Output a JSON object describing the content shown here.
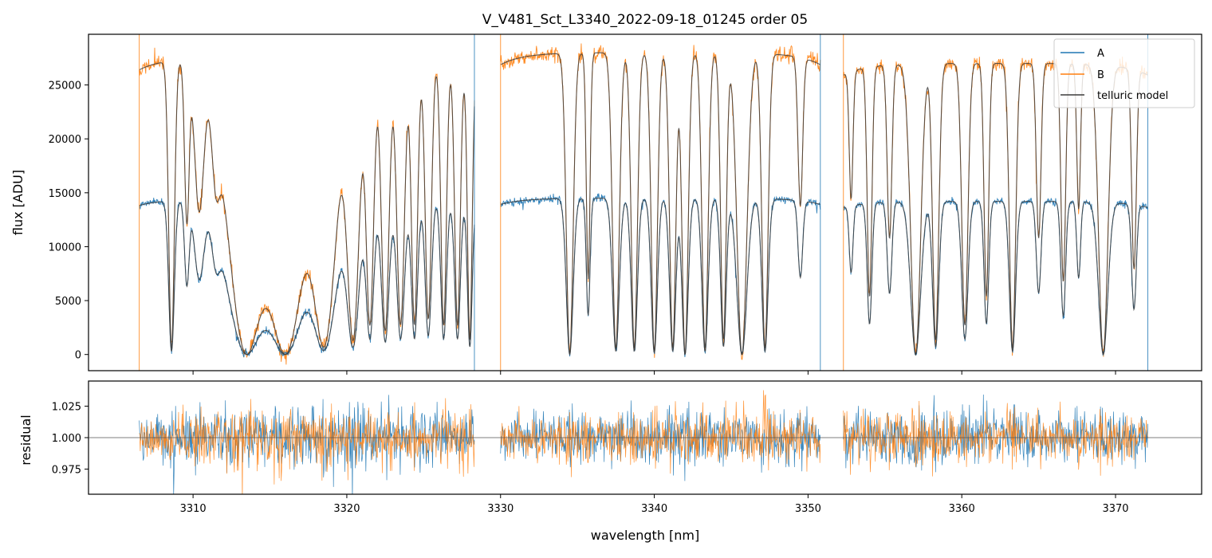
{
  "chart_data": {
    "type": "line",
    "title": "V_V481_Sct_L3340_2022-09-18_01245  order 05",
    "xlabel": "wavelength [nm]",
    "xlim": [
      3303.2,
      3375.6
    ],
    "x_ticks": [
      3310,
      3320,
      3330,
      3340,
      3350,
      3360,
      3370
    ],
    "x_tick_labels": [
      "3310",
      "3320",
      "3330",
      "3340",
      "3350",
      "3360",
      "3370"
    ],
    "colors": {
      "A": "#1f77b4",
      "B": "#ff7f0e",
      "model": "#3d3d3d",
      "ref": "#555555"
    },
    "segments": [
      [
        3306.5,
        3328.3
      ],
      [
        3330.0,
        3350.8
      ],
      [
        3352.3,
        3372.1
      ]
    ],
    "main_panel": {
      "ylabel": "flux [ADU]",
      "ylim": [
        -1500,
        29700
      ],
      "y_ticks": [
        0,
        5000,
        10000,
        15000,
        20000,
        25000
      ],
      "y_tick_labels": [
        "0",
        "5000",
        "10000",
        "15000",
        "20000",
        "25000"
      ],
      "continuum_A": [
        14400,
        14500,
        14200
      ],
      "continuum_B": [
        27500,
        28000,
        27000
      ],
      "absorption_lines": [
        [
          3308.6,
          0.98,
          0.18
        ],
        [
          3309.6,
          0.55,
          0.15
        ],
        [
          3310.4,
          0.5,
          0.3
        ],
        [
          3311.5,
          0.3,
          0.25
        ],
        [
          3313.5,
          1.0,
          1.2
        ],
        [
          3316.0,
          1.0,
          1.3
        ],
        [
          3318.5,
          0.97,
          0.8
        ],
        [
          3320.4,
          0.95,
          0.4
        ],
        [
          3321.5,
          0.9,
          0.25
        ],
        [
          3322.5,
          0.92,
          0.25
        ],
        [
          3323.5,
          0.9,
          0.25
        ],
        [
          3324.4,
          0.9,
          0.2
        ],
        [
          3325.3,
          0.88,
          0.2
        ],
        [
          3326.3,
          0.9,
          0.18
        ],
        [
          3327.2,
          0.9,
          0.18
        ],
        [
          3328.0,
          0.95,
          0.15
        ],
        [
          3334.5,
          1.0,
          0.22
        ],
        [
          3335.7,
          0.75,
          0.12
        ],
        [
          3337.5,
          0.98,
          0.22
        ],
        [
          3338.7,
          0.98,
          0.2
        ],
        [
          3340.0,
          0.99,
          0.2
        ],
        [
          3341.2,
          0.98,
          0.2
        ],
        [
          3342.0,
          1.0,
          0.2
        ],
        [
          3343.3,
          0.98,
          0.2
        ],
        [
          3344.5,
          0.95,
          0.18
        ],
        [
          3345.7,
          1.0,
          0.32
        ],
        [
          3347.2,
          0.98,
          0.2
        ],
        [
          3349.5,
          0.5,
          0.15
        ],
        [
          3352.8,
          0.45,
          0.12
        ],
        [
          3354.0,
          0.8,
          0.15
        ],
        [
          3355.3,
          0.6,
          0.15
        ],
        [
          3357.0,
          1.0,
          0.32
        ],
        [
          3358.3,
          0.95,
          0.2
        ],
        [
          3360.2,
          0.9,
          0.2
        ],
        [
          3361.6,
          0.8,
          0.15
        ],
        [
          3363.3,
          0.98,
          0.2
        ],
        [
          3365.0,
          0.6,
          0.15
        ],
        [
          3366.6,
          0.75,
          0.15
        ],
        [
          3367.6,
          0.5,
          0.12
        ],
        [
          3369.2,
          1.0,
          0.3
        ],
        [
          3371.2,
          0.7,
          0.15
        ]
      ],
      "legend": {
        "location": "upper right",
        "entries": [
          {
            "label": "A",
            "color": "#1f77b4"
          },
          {
            "label": "B",
            "color": "#ff7f0e"
          },
          {
            "label": "telluric model",
            "color": "#3d3d3d"
          }
        ]
      }
    },
    "residual_panel": {
      "ylabel": "residual",
      "ylim": [
        0.955,
        1.045
      ],
      "y_ticks": [
        0.975,
        1.0,
        1.025
      ],
      "y_tick_labels": [
        "0.975",
        "1.000",
        "1.025"
      ],
      "reference_line": 1.0
    }
  }
}
